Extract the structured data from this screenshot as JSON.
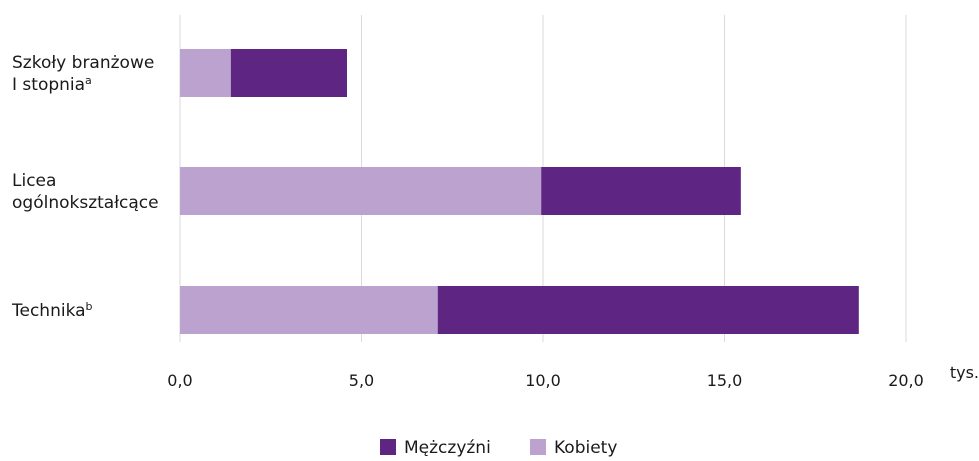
{
  "chart_data": {
    "type": "bar",
    "orientation": "horizontal",
    "stacked": true,
    "categories": [
      [
        "Szkoły branżowe",
        "I stopnia",
        "a"
      ],
      [
        "Licea",
        "ogólnokształcące",
        ""
      ],
      [
        "Technika",
        "",
        "b"
      ]
    ],
    "series": [
      {
        "name": "Kobiety",
        "color": "#bba2cf",
        "values": [
          1.4,
          9.95,
          7.1
        ]
      },
      {
        "name": "Mężczyźni",
        "color": "#5e2583",
        "values": [
          3.2,
          5.5,
          11.6
        ]
      }
    ],
    "xlim": [
      0,
      20
    ],
    "xticks": [
      0,
      5,
      10,
      15,
      20
    ],
    "xtick_labels": [
      "0,0",
      "5,0",
      "10,0",
      "15,0",
      "20,0"
    ],
    "unit": "tys.",
    "grid": "vertical",
    "legend": {
      "placement": "bottom-center",
      "items": [
        {
          "label": "Mężczyźni",
          "color": "#5e2583"
        },
        {
          "label": "Kobiety",
          "color": "#bba2cf"
        }
      ]
    }
  }
}
